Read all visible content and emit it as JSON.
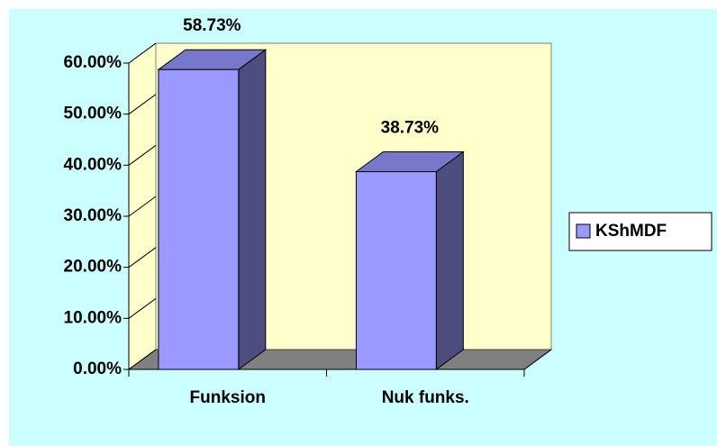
{
  "chart_data": {
    "type": "bar",
    "categories": [
      "Funksion",
      "Nuk funks."
    ],
    "series": [
      {
        "name": "KShMDF",
        "color": "#9999ff",
        "values": [
          58.73,
          38.73
        ]
      }
    ],
    "value_labels": [
      "58.73%",
      "38.73%"
    ],
    "ylim": [
      0,
      60
    ],
    "yticks": [
      {
        "value": 0,
        "label": "0.00%"
      },
      {
        "value": 10,
        "label": "10.00%"
      },
      {
        "value": 20,
        "label": "20.00%"
      },
      {
        "value": 30,
        "label": "30.00%"
      },
      {
        "value": 40,
        "label": "40.00%"
      },
      {
        "value": 50,
        "label": "50.00%"
      },
      {
        "value": 60,
        "label": "60.00%"
      }
    ],
    "legend": "right"
  }
}
